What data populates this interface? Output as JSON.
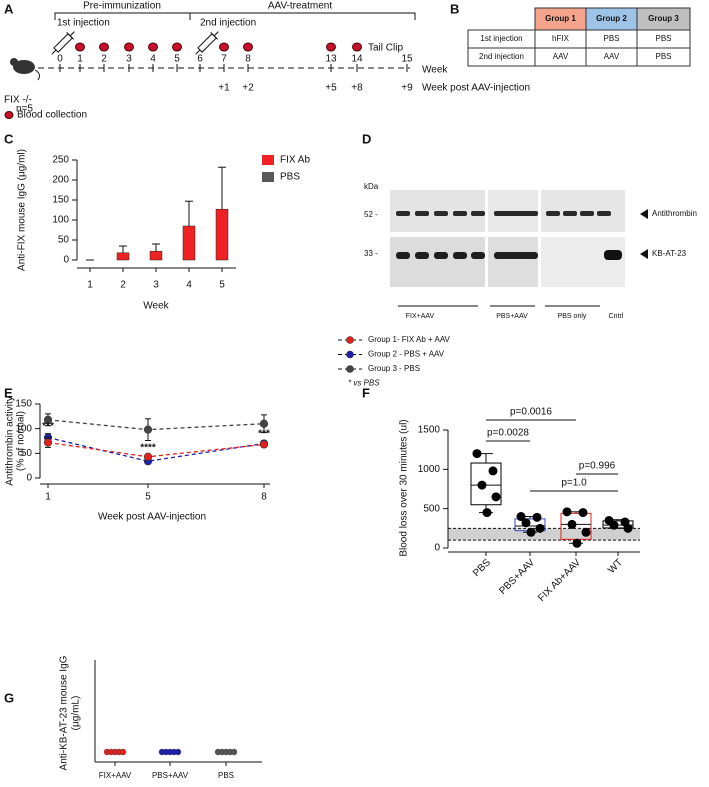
{
  "timeline": {
    "label": "A",
    "phases": [
      "Pre-immunization",
      "AAV-treatment"
    ],
    "injections": [
      "1st injection",
      "2nd injection"
    ],
    "event": "Tail Clip",
    "weeks": [
      0,
      1,
      2,
      3,
      4,
      5,
      6,
      7,
      8,
      13,
      14,
      15
    ],
    "week_axis_label": "Week",
    "post_weeks": [
      "+1",
      "+2",
      "+5",
      "+8",
      "+9"
    ],
    "post_axis_label": "Week post AAV-injection",
    "mouse": [
      "FIX -/-",
      "n=5"
    ],
    "legend": "Blood collection"
  },
  "table": {
    "label": "B",
    "columns": [
      "Group 1",
      "Group 2",
      "Group 3"
    ],
    "rows": [
      [
        "1st injection",
        "hFIX",
        "PBS",
        "PBS"
      ],
      [
        "2nd injection",
        "AAV",
        "AAV",
        "PBS"
      ]
    ]
  },
  "blot": {
    "label": "D",
    "unit": "kDa",
    "markers": [
      "52 -",
      "33 -"
    ],
    "bands": [
      "Antithrombin",
      "KB-AT-23"
    ],
    "lanes": [
      "FIX+AAV",
      "PBS+AAV",
      "PBS only",
      "Cntrl"
    ]
  },
  "chart_data": [
    {
      "label": "C",
      "type": "bar",
      "y_label": "Anti-FIX mouse IgG (µg/ml)",
      "x_label": "Week",
      "categories": [
        "1",
        "2",
        "3",
        "4",
        "5"
      ],
      "series": [
        {
          "name": "FIX Ab",
          "color": "#ee2222",
          "values": [
            0,
            18,
            22,
            85,
            127
          ],
          "errors": [
            0,
            17,
            18,
            62,
            105
          ]
        },
        {
          "name": "PBS",
          "color": "#595959",
          "values": [
            0,
            0,
            0,
            0,
            0
          ]
        }
      ],
      "ylim": [
        0,
        250
      ],
      "yticks": [
        0,
        50,
        100,
        150,
        200,
        250
      ]
    },
    {
      "label": "E",
      "type": "line",
      "y_label": [
        "Antithrombin activity",
        "(% of normal)"
      ],
      "x_label": "Week post AAV-injection",
      "categories": [
        "1",
        "5",
        "8"
      ],
      "series": [
        {
          "name": "Group 1- FIX Ab + AAV",
          "color": "#e3201b",
          "values": [
            72,
            43,
            68
          ],
          "errors": [
            10,
            4,
            5
          ]
        },
        {
          "name": "Group 2 - PBS + AAV",
          "color": "#1f1fa8",
          "values": [
            82,
            34,
            70
          ],
          "errors": [
            8,
            5,
            5
          ]
        },
        {
          "name": "Group 3 - PBS",
          "color": "#444444",
          "values": [
            118,
            98,
            110
          ],
          "errors": [
            12,
            22,
            18
          ]
        }
      ],
      "annotations": [
        "***",
        "****",
        "***"
      ],
      "note": "* vs PBS",
      "ylim": [
        0,
        150
      ],
      "yticks": [
        0,
        50,
        100,
        150
      ]
    },
    {
      "label": "F",
      "type": "box",
      "y_label": "Blood loss over 30 minutes (ul)",
      "categories": [
        "PBS",
        "PBS+AAV",
        "FIX Ab+AAV",
        "WT"
      ],
      "colors": [
        "#000000",
        "#3b4cc0",
        "#e3201b",
        "#000000"
      ],
      "boxes": [
        {
          "min": 450,
          "q1": 550,
          "median": 800,
          "q3": 1080,
          "max": 1200
        },
        {
          "min": 200,
          "q1": 220,
          "median": 280,
          "q3": 370,
          "max": 400
        },
        {
          "min": 60,
          "q1": 110,
          "median": 300,
          "q3": 440,
          "max": 460
        },
        {
          "min": 250,
          "q1": 255,
          "median": 290,
          "q3": 345,
          "max": 360
        }
      ],
      "points": [
        [
          1200,
          980,
          800,
          650,
          450
        ],
        [
          400,
          390,
          320,
          250,
          200
        ],
        [
          460,
          450,
          300,
          200,
          60
        ],
        [
          350,
          330,
          290,
          250
        ]
      ],
      "band": [
        100,
        250
      ],
      "comparisons": [
        {
          "label": "p=0.0016",
          "from": 0,
          "to": 2
        },
        {
          "label": "p=0.0028",
          "from": 0,
          "to": 1
        },
        {
          "label": "p=0.996",
          "from": 2,
          "to": 3
        },
        {
          "label": "p=1.0",
          "from": 1,
          "to": 3
        }
      ],
      "ylim": [
        0,
        1500
      ],
      "yticks": [
        0,
        500,
        1000,
        1500
      ]
    },
    {
      "label": "G",
      "type": "strip",
      "y_label": [
        "Anti-KB-AT-23 mouse IgG",
        "(µg/mL)"
      ],
      "categories": [
        "FIX+AAV",
        "PBS+AAV",
        "PBS"
      ],
      "colors": [
        "#e3201b",
        "#1f1fa8",
        "#555555"
      ],
      "points": [
        [
          0,
          0,
          0,
          0,
          0
        ],
        [
          0,
          0,
          0,
          0,
          0
        ],
        [
          0,
          0,
          0,
          0,
          0
        ]
      ]
    }
  ]
}
